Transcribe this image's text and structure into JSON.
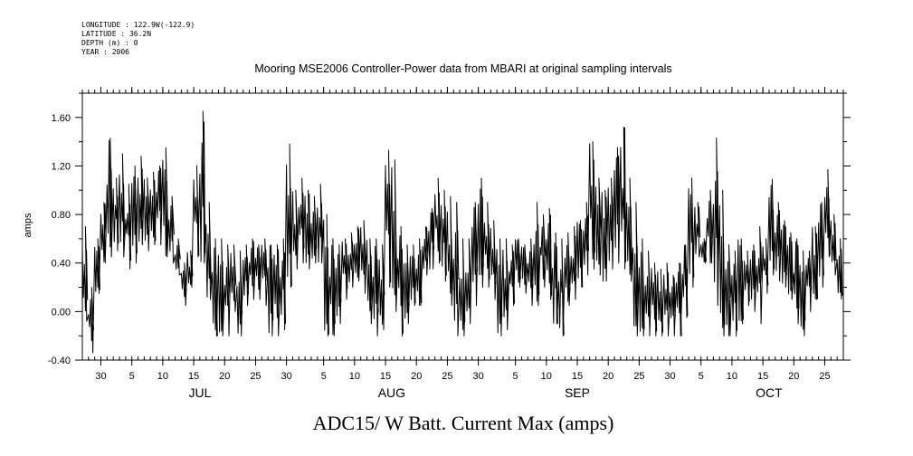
{
  "header": {
    "longitude": "LONGITUDE : 122.9W(-122.9)",
    "latitude": "LATITUDE : 36.2N",
    "depth": "DEPTH (m) : 0",
    "year": "YEAR : 2006"
  },
  "chart_data": {
    "type": "line",
    "title": "Mooring MSE2006 Controller-Power data from MBARI at original sampling intervals",
    "xlabel": "ADC15/ W Batt. Current Max (amps)",
    "ylabel": "amps",
    "ylim": [
      -0.4,
      1.8
    ],
    "yticks": [
      -0.4,
      0.0,
      0.4,
      0.8,
      1.2,
      1.6
    ],
    "ytick_labels": [
      "-0.40",
      "0.00",
      "0.40",
      "0.80",
      "1.20",
      "1.60"
    ],
    "xlim": [
      "2006-06-27",
      "2006-10-28"
    ],
    "xtick_day_labels": [
      "30",
      "5",
      "10",
      "15",
      "20",
      "25",
      "30",
      "5",
      "10",
      "15",
      "20",
      "25",
      "30",
      "5",
      "10",
      "15",
      "20",
      "25",
      "30",
      "5",
      "10",
      "15",
      "20",
      "25"
    ],
    "xtick_dates": [
      "2006-06-30",
      "2006-07-05",
      "2006-07-10",
      "2006-07-15",
      "2006-07-20",
      "2006-07-25",
      "2006-07-30",
      "2006-08-05",
      "2006-08-10",
      "2006-08-15",
      "2006-08-20",
      "2006-08-25",
      "2006-08-30",
      "2006-09-05",
      "2006-09-10",
      "2006-09-15",
      "2006-09-20",
      "2006-09-25",
      "2006-09-30",
      "2006-10-05",
      "2006-10-10",
      "2006-10-15",
      "2006-10-20",
      "2006-10-25"
    ],
    "month_labels": [
      "JUL",
      "AUG",
      "SEP",
      "OCT"
    ],
    "month_label_dates": [
      "2006-07-16",
      "2006-08-16",
      "2006-09-15",
      "2006-10-16"
    ],
    "series": [
      {
        "x": [
          "2006-06-27",
          "2006-06-28",
          "2006-06-29",
          "2006-06-30",
          "2006-07-01",
          "2006-07-02",
          "2006-07-03",
          "2006-07-04",
          "2006-07-05",
          "2006-07-06",
          "2006-07-07",
          "2006-07-08",
          "2006-07-09",
          "2006-07-10",
          "2006-07-11",
          "2006-07-12",
          "2006-07-13",
          "2006-07-14",
          "2006-07-15",
          "2006-07-16",
          "2006-07-17",
          "2006-07-18",
          "2006-07-19",
          "2006-07-20",
          "2006-07-21",
          "2006-07-22",
          "2006-07-23",
          "2006-07-24",
          "2006-07-25",
          "2006-07-26",
          "2006-07-27",
          "2006-07-28",
          "2006-07-29",
          "2006-07-30",
          "2006-07-31",
          "2006-08-01",
          "2006-08-02",
          "2006-08-03",
          "2006-08-04",
          "2006-08-05",
          "2006-08-06",
          "2006-08-07",
          "2006-08-08",
          "2006-08-09",
          "2006-08-10",
          "2006-08-11",
          "2006-08-12",
          "2006-08-13",
          "2006-08-14",
          "2006-08-15",
          "2006-08-16",
          "2006-08-17",
          "2006-08-18",
          "2006-08-19",
          "2006-08-20",
          "2006-08-21",
          "2006-08-22",
          "2006-08-23",
          "2006-08-24",
          "2006-08-25",
          "2006-08-26",
          "2006-08-27",
          "2006-08-28",
          "2006-08-29",
          "2006-08-30",
          "2006-08-31",
          "2006-09-01",
          "2006-09-02",
          "2006-09-03",
          "2006-09-04",
          "2006-09-05",
          "2006-09-06",
          "2006-09-07",
          "2006-09-08",
          "2006-09-09",
          "2006-09-10",
          "2006-09-11",
          "2006-09-12",
          "2006-09-13",
          "2006-09-14",
          "2006-09-15",
          "2006-09-16",
          "2006-09-17",
          "2006-09-18",
          "2006-09-19",
          "2006-09-20",
          "2006-09-21",
          "2006-09-22",
          "2006-09-23",
          "2006-09-24",
          "2006-09-25",
          "2006-09-26",
          "2006-09-27",
          "2006-09-28",
          "2006-09-29",
          "2006-09-30",
          "2006-10-01",
          "2006-10-02",
          "2006-10-03",
          "2006-10-04",
          "2006-10-05",
          "2006-10-06",
          "2006-10-07",
          "2006-10-08",
          "2006-10-09",
          "2006-10-10",
          "2006-10-11",
          "2006-10-12",
          "2006-10-13",
          "2006-10-14",
          "2006-10-15",
          "2006-10-16",
          "2006-10-17",
          "2006-10-18",
          "2006-10-19",
          "2006-10-20",
          "2006-10-21",
          "2006-10-22",
          "2006-10-23",
          "2006-10-24",
          "2006-10-25",
          "2006-10-26",
          "2006-10-27"
        ],
        "ymax": [
          0.7,
          0.2,
          0.6,
          0.9,
          1.43,
          1.1,
          1.3,
          1.05,
          1.2,
          1.28,
          1.1,
          1.15,
          1.2,
          1.35,
          0.95,
          0.6,
          0.4,
          0.5,
          1.2,
          1.65,
          0.9,
          0.6,
          0.6,
          0.55,
          0.55,
          0.5,
          0.55,
          0.6,
          0.55,
          0.6,
          0.55,
          0.55,
          0.6,
          1.38,
          1.0,
          1.1,
          1.0,
          0.95,
          1.05,
          0.8,
          0.6,
          0.55,
          0.6,
          0.65,
          0.7,
          0.75,
          0.6,
          0.6,
          0.55,
          1.33,
          1.25,
          0.7,
          0.55,
          0.55,
          0.6,
          0.7,
          0.85,
          1.1,
          1.0,
          0.95,
          0.9,
          0.6,
          0.6,
          0.9,
          1.1,
          0.9,
          0.75,
          0.6,
          0.6,
          0.55,
          0.6,
          0.55,
          0.6,
          0.9,
          0.8,
          0.85,
          0.65,
          0.6,
          0.65,
          0.7,
          0.75,
          0.9,
          1.4,
          1.1,
          1.0,
          1.1,
          1.35,
          1.52,
          1.1,
          0.9,
          0.6,
          0.5,
          0.4,
          0.35,
          0.4,
          0.3,
          0.4,
          0.55,
          1.1,
          0.9,
          0.6,
          1.0,
          1.43,
          1.0,
          0.55,
          0.5,
          0.6,
          0.5,
          0.55,
          0.7,
          0.6,
          1.09,
          0.9,
          0.75,
          0.65,
          0.6,
          0.5,
          0.5,
          0.7,
          0.9,
          1.17,
          0.8,
          0.6,
          0.5
        ],
        "ymin": [
          -0.08,
          -0.34,
          0.15,
          0.4,
          0.45,
          0.5,
          0.45,
          0.35,
          0.4,
          0.55,
          0.5,
          0.55,
          0.55,
          0.45,
          0.4,
          0.3,
          0.05,
          0.2,
          0.45,
          0.4,
          0.1,
          -0.2,
          -0.2,
          -0.2,
          0.0,
          -0.2,
          0.05,
          0.1,
          0.1,
          0.05,
          -0.2,
          -0.2,
          -0.15,
          0.2,
          0.35,
          0.4,
          0.35,
          0.4,
          0.4,
          -0.2,
          -0.2,
          -0.1,
          0.1,
          0.2,
          0.25,
          0.15,
          -0.1,
          -0.2,
          -0.15,
          0.2,
          0.0,
          -0.2,
          -0.1,
          0.05,
          0.05,
          0.3,
          0.35,
          0.4,
          0.25,
          0.05,
          -0.2,
          -0.2,
          -0.1,
          0.05,
          0.2,
          0.2,
          0.1,
          -0.2,
          -0.15,
          0.05,
          0.2,
          0.15,
          0.05,
          0.05,
          0.2,
          0.1,
          -0.1,
          -0.2,
          0.05,
          0.1,
          0.2,
          0.3,
          0.35,
          0.3,
          0.25,
          0.35,
          0.4,
          0.35,
          0.25,
          -0.2,
          -0.2,
          -0.2,
          -0.2,
          -0.2,
          -0.2,
          -0.2,
          -0.2,
          -0.05,
          0.2,
          0.45,
          0.4,
          0.4,
          0.05,
          -0.2,
          -0.2,
          -0.2,
          -0.1,
          0.05,
          0.0,
          -0.1,
          0.15,
          0.3,
          0.25,
          0.2,
          0.1,
          -0.1,
          -0.2,
          0.0,
          0.1,
          0.2,
          0.45,
          0.3,
          0.1,
          0.05
        ]
      }
    ]
  }
}
